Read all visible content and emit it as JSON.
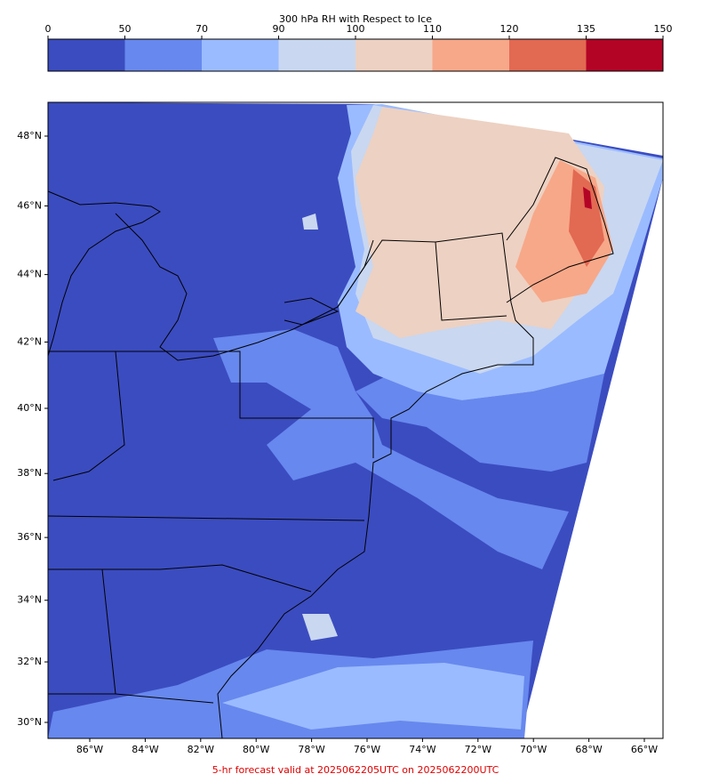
{
  "colorbar": {
    "title": "300 hPa RH with Respect to Ice",
    "bounds": [
      0,
      50,
      70,
      90,
      100,
      110,
      120,
      135,
      150
    ],
    "colors": [
      "#3b4cc0",
      "#6788ee",
      "#9abbff",
      "#c9d7f0",
      "#edd1c2",
      "#f7a889",
      "#e26952",
      "#b40426"
    ]
  },
  "map": {
    "lat_ticks": [
      {
        "value": 30,
        "label": "30°N"
      },
      {
        "value": 32,
        "label": "32°N"
      },
      {
        "value": 34,
        "label": "34°N"
      },
      {
        "value": 36,
        "label": "36°N"
      },
      {
        "value": 38,
        "label": "38°N"
      },
      {
        "value": 40,
        "label": "40°N"
      },
      {
        "value": 42,
        "label": "42°N"
      },
      {
        "value": 44,
        "label": "44°N"
      },
      {
        "value": 46,
        "label": "46°N"
      },
      {
        "value": 48,
        "label": "48°N"
      }
    ],
    "lon_ticks": [
      {
        "value": -86,
        "label": "86°W"
      },
      {
        "value": -84,
        "label": "84°W"
      },
      {
        "value": -82,
        "label": "82°W"
      },
      {
        "value": -80,
        "label": "80°W"
      },
      {
        "value": -78,
        "label": "78°W"
      },
      {
        "value": -76,
        "label": "76°W"
      },
      {
        "value": -74,
        "label": "74°W"
      },
      {
        "value": -72,
        "label": "72°W"
      },
      {
        "value": -70,
        "label": "70°W"
      },
      {
        "value": -68,
        "label": "68°W"
      },
      {
        "value": -66,
        "label": "66°W"
      }
    ]
  },
  "footer": "5-hr forecast valid at 2025062205UTC on 2025062200UTC"
}
